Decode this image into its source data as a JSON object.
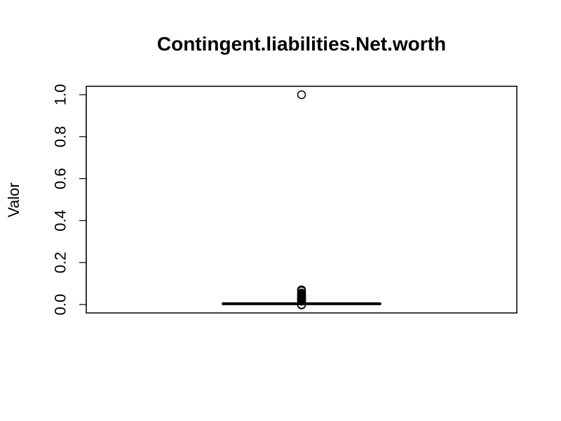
{
  "chart_data": {
    "type": "boxplot",
    "title": "Contingent.liabilities.Net.worth",
    "xlabel": "",
    "ylabel": "Valor",
    "yticks": [
      0.0,
      0.2,
      0.4,
      0.6,
      0.8,
      1.0
    ],
    "ytick_labels": [
      "0.0",
      "0.2",
      "0.4",
      "0.6",
      "0.8",
      "1.0"
    ],
    "ylim": [
      -0.04,
      1.04
    ],
    "grid": false,
    "box": {
      "min": 0.0,
      "q1": 0.002,
      "median": 0.004,
      "q3": 0.006,
      "max": 0.012
    },
    "outliers": [
      1.0,
      0.07,
      0.065,
      0.055,
      0.05,
      0.045,
      0.04,
      0.035,
      0.03,
      0.025,
      0.02,
      0.018,
      0.016,
      0.0,
      -0.002
    ]
  }
}
